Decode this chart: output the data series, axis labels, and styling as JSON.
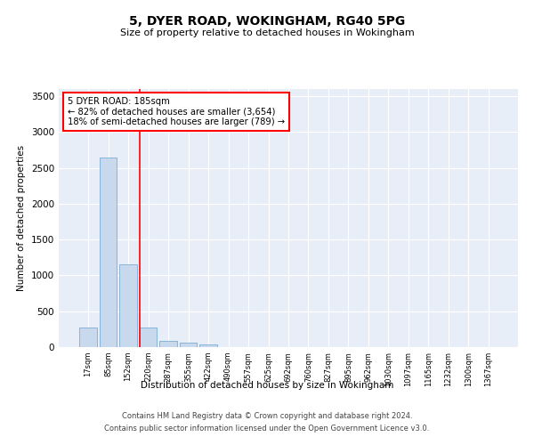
{
  "title": "5, DYER ROAD, WOKINGHAM, RG40 5PG",
  "subtitle": "Size of property relative to detached houses in Wokingham",
  "xlabel": "Distribution of detached houses by size in Wokingham",
  "ylabel": "Number of detached properties",
  "bar_color": "#c8d9ee",
  "bar_edge_color": "#7aadd4",
  "background_color": "#e8eef8",
  "grid_color": "#ffffff",
  "categories": [
    "17sqm",
    "85sqm",
    "152sqm",
    "220sqm",
    "287sqm",
    "355sqm",
    "422sqm",
    "490sqm",
    "557sqm",
    "625sqm",
    "692sqm",
    "760sqm",
    "827sqm",
    "895sqm",
    "962sqm",
    "1030sqm",
    "1097sqm",
    "1165sqm",
    "1232sqm",
    "1300sqm",
    "1367sqm"
  ],
  "values": [
    270,
    2650,
    1150,
    270,
    90,
    60,
    35,
    5,
    0,
    0,
    0,
    0,
    0,
    0,
    0,
    0,
    0,
    0,
    0,
    0,
    0
  ],
  "red_line_x": 2.57,
  "annotation_text": "5 DYER ROAD: 185sqm\n← 82% of detached houses are smaller (3,654)\n18% of semi-detached houses are larger (789) →",
  "ylim": [
    0,
    3600
  ],
  "yticks": [
    0,
    500,
    1000,
    1500,
    2000,
    2500,
    3000,
    3500
  ],
  "footnote1": "Contains HM Land Registry data © Crown copyright and database right 2024.",
  "footnote2": "Contains public sector information licensed under the Open Government Licence v3.0."
}
